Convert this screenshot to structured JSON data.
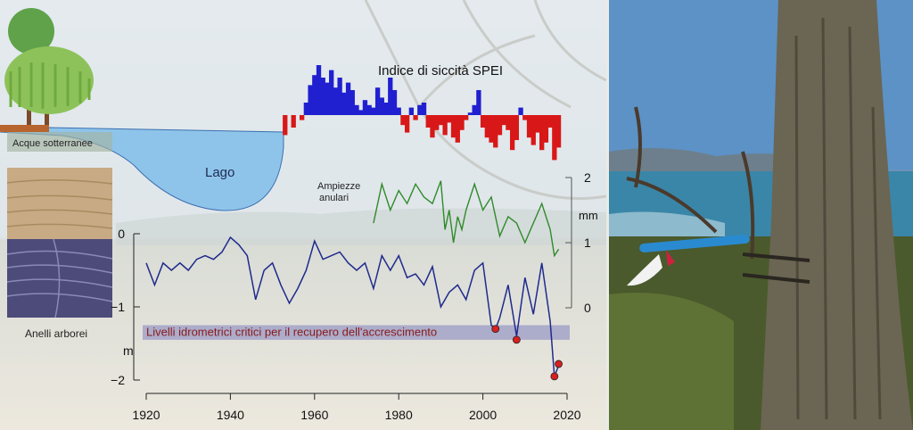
{
  "labels": {
    "spei_title": "Indice di siccità SPEI",
    "groundwater": "Acque sotterranee",
    "lake": "Lago",
    "tree_rings": "Anelli arborei",
    "ring_widths": "Ampiezze\nanulari",
    "critical_band": "Livelli idrometrici critici per il recupero dell'accrescimento"
  },
  "colors": {
    "lake_level": "#1f2a8c",
    "ring_width": "#2f8a2a",
    "spei_wet": "#2020d0",
    "spei_dry": "#d81818",
    "critical_band": "#6a6ab8",
    "critical_text": "#8a1a1a",
    "critical_marker": "#d82020",
    "lake_fill": "#8fc4ea"
  },
  "chart_data": [
    {
      "type": "line",
      "name": "lake_level",
      "x": [
        1920,
        1922,
        1924,
        1926,
        1928,
        1930,
        1932,
        1934,
        1936,
        1938,
        1940,
        1942,
        1944,
        1946,
        1948,
        1950,
        1952,
        1954,
        1956,
        1958,
        1960,
        1962,
        1964,
        1966,
        1968,
        1970,
        1972,
        1974,
        1976,
        1978,
        1980,
        1982,
        1984,
        1986,
        1988,
        1990,
        1992,
        1994,
        1996,
        1998,
        2000,
        2002,
        2003,
        2004,
        2006,
        2008,
        2010,
        2012,
        2014,
        2016,
        2017,
        2018
      ],
      "y": [
        -0.4,
        -0.7,
        -0.4,
        -0.5,
        -0.4,
        -0.5,
        -0.35,
        -0.3,
        -0.35,
        -0.25,
        -0.05,
        -0.15,
        -0.3,
        -0.9,
        -0.5,
        -0.4,
        -0.7,
        -0.95,
        -0.75,
        -0.5,
        -0.1,
        -0.35,
        -0.3,
        -0.25,
        -0.4,
        -0.5,
        -0.4,
        -0.75,
        -0.3,
        -0.5,
        -0.3,
        -0.6,
        -0.55,
        -0.7,
        -0.45,
        -1.0,
        -0.8,
        -0.7,
        -0.9,
        -0.5,
        -0.4,
        -1.25,
        -1.3,
        -1.15,
        -0.7,
        -1.4,
        -0.6,
        -1.1,
        -0.4,
        -1.2,
        -1.95,
        -1.8
      ],
      "ylim": [
        -2,
        0
      ],
      "yticks": [
        0,
        -1,
        -2
      ],
      "ylabel": "m",
      "xticks": [
        1920,
        1940,
        1960,
        1980,
        2000,
        2020
      ],
      "xlim": [
        1920,
        2020
      ],
      "critical_band": [
        -1.25,
        -1.45
      ],
      "critical_points": [
        [
          2003,
          -1.3
        ],
        [
          2008,
          -1.45
        ],
        [
          2017,
          -1.95
        ],
        [
          2018,
          -1.78
        ]
      ]
    },
    {
      "type": "line",
      "name": "ring_width",
      "x": [
        1974,
        1976,
        1978,
        1980,
        1982,
        1984,
        1986,
        1988,
        1990,
        1991,
        1992,
        1993,
        1994,
        1995,
        1996,
        1998,
        2000,
        2002,
        2004,
        2006,
        2008,
        2010,
        2012,
        2014,
        2016,
        2017,
        2018
      ],
      "y": [
        1.3,
        1.9,
        1.5,
        1.8,
        1.6,
        1.9,
        1.7,
        1.6,
        1.95,
        1.2,
        1.5,
        1.0,
        1.4,
        1.2,
        1.5,
        1.9,
        1.5,
        1.7,
        1.1,
        1.4,
        1.3,
        1.0,
        1.3,
        1.6,
        1.2,
        0.8,
        0.9
      ],
      "ylim": [
        0,
        2
      ],
      "yticks": [
        0,
        1,
        2
      ],
      "ylabel": "mm"
    },
    {
      "type": "area",
      "name": "spei",
      "x": [
        1953,
        1955,
        1957,
        1958,
        1959,
        1960,
        1961,
        1962,
        1963,
        1964,
        1965,
        1966,
        1967,
        1968,
        1969,
        1970,
        1971,
        1972,
        1973,
        1974,
        1975,
        1976,
        1977,
        1978,
        1979,
        1980,
        1981,
        1982,
        1983,
        1984,
        1985,
        1986,
        1987,
        1988,
        1989,
        1990,
        1991,
        1992,
        1993,
        1994,
        1995,
        1996,
        1997,
        1998,
        1999,
        2000,
        2001,
        2002,
        2003,
        2004,
        2005,
        2006,
        2007,
        2008,
        2009,
        2010,
        2011,
        2012,
        2013,
        2014,
        2015,
        2016,
        2017,
        2018
      ],
      "values": [
        -0.8,
        -0.5,
        -0.2,
        0.5,
        1.2,
        1.6,
        2.0,
        1.5,
        1.3,
        1.8,
        1.1,
        1.5,
        0.9,
        1.3,
        1.0,
        0.4,
        0.2,
        0.6,
        0.4,
        0.3,
        1.1,
        0.7,
        0.5,
        1.5,
        1.0,
        0.3,
        -0.4,
        -0.7,
        0.3,
        -0.2,
        0.4,
        0.5,
        -0.5,
        -0.9,
        -0.6,
        -0.4,
        -0.8,
        -0.3,
        -0.9,
        -1.1,
        -0.6,
        -0.2,
        0.1,
        0.4,
        1.0,
        -0.5,
        -0.9,
        -1.1,
        -1.3,
        -0.8,
        -0.4,
        -0.6,
        -1.4,
        -1.0,
        0.3,
        -0.2,
        -0.9,
        -1.2,
        -0.7,
        -1.4,
        -1.1,
        -0.5,
        -1.8,
        -1.3
      ],
      "ylim": [
        -2,
        2
      ]
    }
  ]
}
